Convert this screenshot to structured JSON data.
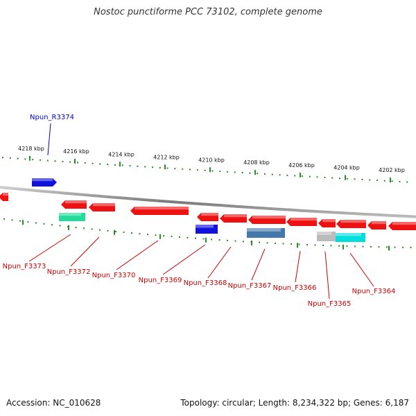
{
  "title": "Nostoc punctiforme PCC 73102, complete genome",
  "footer": {
    "accession": "Accession: NC_010628",
    "summary": "Topology: circular; Length: 8,234,322 bp; Genes: 6,187"
  },
  "colors": {
    "background": "#ffffff",
    "backbone": "#8a8a8a",
    "tick": "#2a8a2a",
    "forward_gene": "#ee1111",
    "reverse_gene": "#1111dd",
    "label_forward": "#cc0000",
    "label_reverse": "#0000cc"
  },
  "ticks": [
    {
      "label": "4218 kbp"
    },
    {
      "label": "4216 kbp"
    },
    {
      "label": "4214 kbp"
    },
    {
      "label": "4212 kbp"
    },
    {
      "label": "4210 kbp"
    },
    {
      "label": "4208 kbp"
    },
    {
      "label": "4206 kbp"
    },
    {
      "label": "4204 kbp"
    },
    {
      "label": "4202 kbp"
    }
  ],
  "genes": [
    {
      "name": "Npun_R3374",
      "strand": "reverse",
      "color": "#1111dd"
    },
    {
      "name": "Npun_F3373",
      "strand": "forward",
      "color": "#22dd99"
    },
    {
      "name": "Npun_F3372",
      "strand": "forward",
      "color": "#ee1111"
    },
    {
      "name": "Npun_F3370",
      "strand": "forward",
      "color": "#ee1111"
    },
    {
      "name": "Npun_F3369",
      "strand": "forward",
      "color": "#1111dd"
    },
    {
      "name": "Npun_F3368",
      "strand": "forward",
      "color": "#ee1111"
    },
    {
      "name": "Npun_F3367",
      "strand": "forward",
      "color": "#4477aa"
    },
    {
      "name": "Npun_F3366",
      "strand": "forward",
      "color": "#ee1111"
    },
    {
      "name": "Npun_F3365",
      "strand": "forward",
      "color": "#bbbbbb"
    },
    {
      "name": "Npun_F3364",
      "strand": "forward",
      "color": "#00dddd"
    }
  ]
}
